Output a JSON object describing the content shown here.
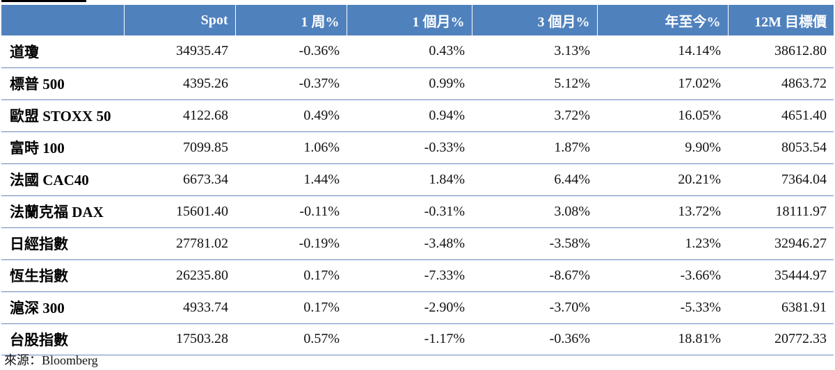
{
  "table": {
    "headers": [
      "",
      "Spot",
      "1 周%",
      "1 個月%",
      "3 個月%",
      "年至今%",
      "12M 目標價"
    ],
    "rows": [
      [
        "道瓊",
        "34935.47",
        "-0.36%",
        "0.43%",
        "3.13%",
        "14.14%",
        "38612.80"
      ],
      [
        "標普 500",
        "4395.26",
        "-0.37%",
        "0.99%",
        "5.12%",
        "17.02%",
        "4863.72"
      ],
      [
        "歐盟 STOXX 50",
        "4122.68",
        "0.49%",
        "0.94%",
        "3.72%",
        "16.05%",
        "4651.40"
      ],
      [
        "富時 100",
        "7099.85",
        "1.06%",
        "-0.33%",
        "1.87%",
        "9.90%",
        "8053.54"
      ],
      [
        "法國 CAC40",
        "6673.34",
        "1.44%",
        "1.84%",
        "6.44%",
        "20.21%",
        "7364.04"
      ],
      [
        "法蘭克福 DAX",
        "15601.40",
        "-0.11%",
        "-0.31%",
        "3.08%",
        "13.72%",
        "18111.97"
      ],
      [
        "日經指數",
        "27781.02",
        "-0.19%",
        "-3.48%",
        "-3.58%",
        "1.23%",
        "32946.27"
      ],
      [
        "恆生指數",
        "26235.80",
        "0.17%",
        "-7.33%",
        "-8.67%",
        "-3.66%",
        "35444.97"
      ],
      [
        "滬深 300",
        "4933.74",
        "0.17%",
        "-2.90%",
        "-3.70%",
        "-5.33%",
        "6381.91"
      ],
      [
        "台股指數",
        "17503.28",
        "0.57%",
        "-1.17%",
        "-0.36%",
        "18.81%",
        "20772.33"
      ]
    ]
  },
  "source": "來源：Bloomberg",
  "colors": {
    "header_bg": "#4f81bd",
    "header_text": "#ffffff",
    "row_border": "#6b86c0"
  }
}
